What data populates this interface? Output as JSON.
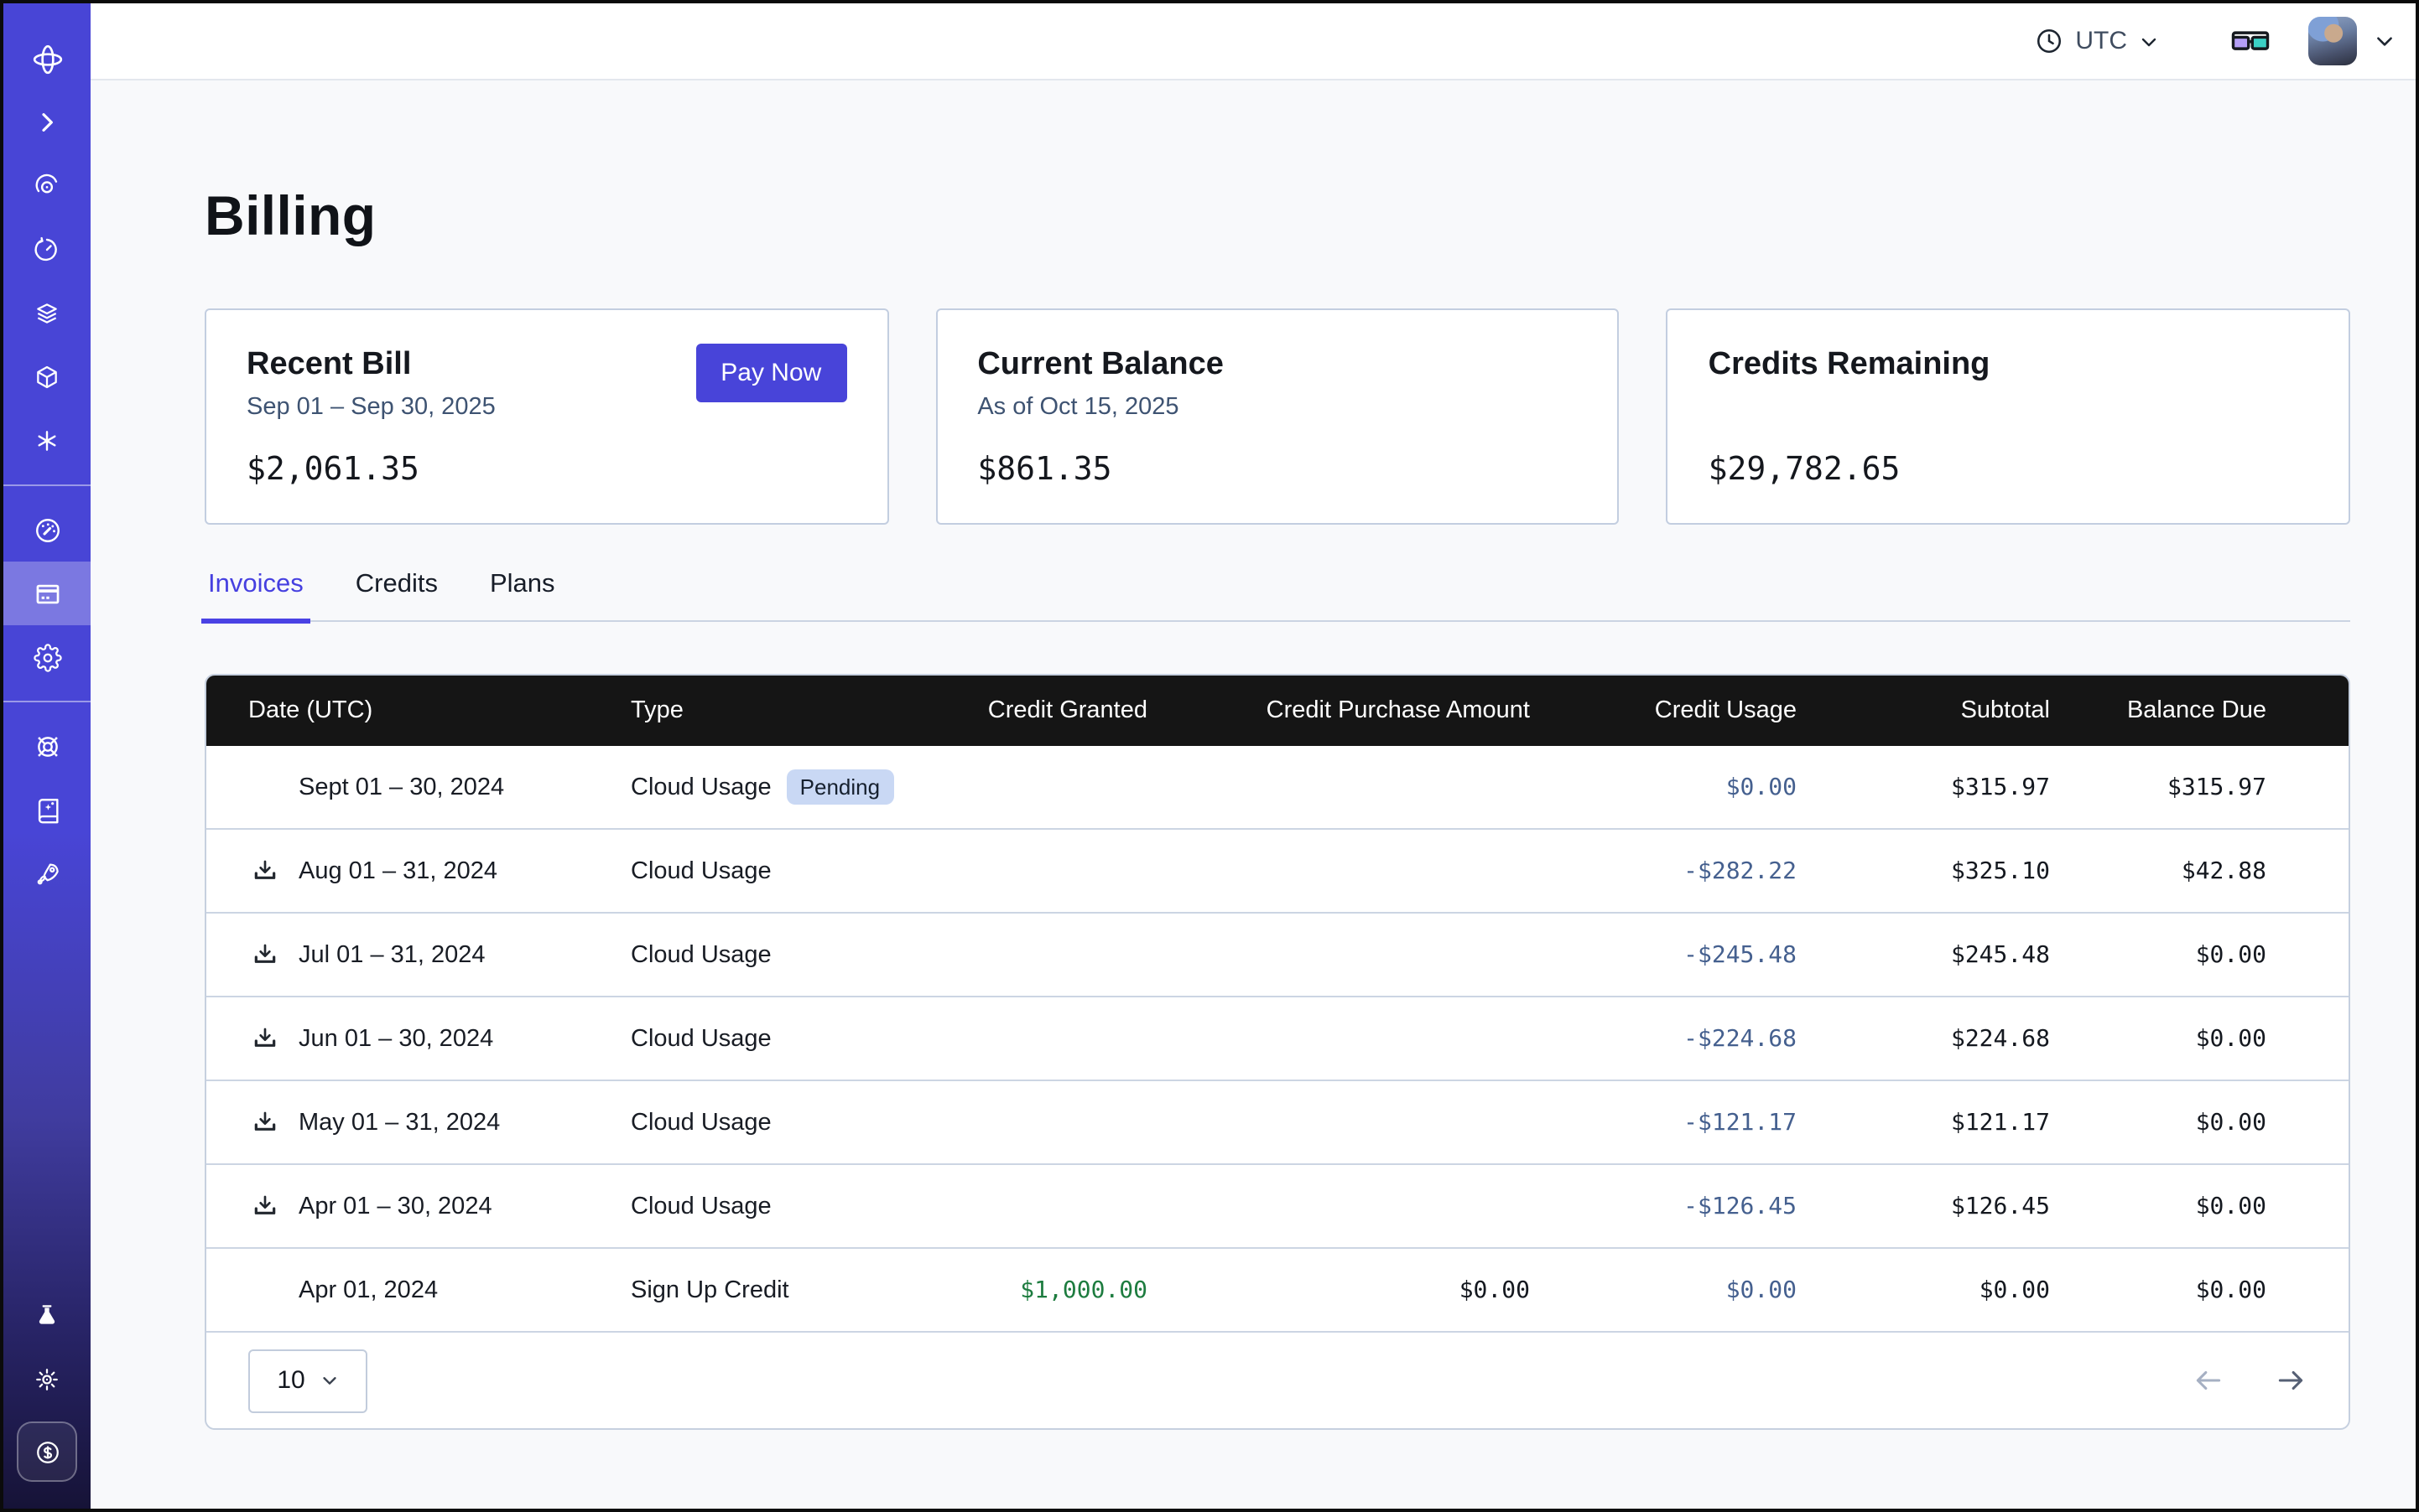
{
  "topbar": {
    "timezone": "UTC",
    "icons": [
      "clock-icon",
      "chevron-down-icon",
      "glasses-icon",
      "avatar",
      "chevron-down-icon"
    ]
  },
  "sidebar": {
    "active_item": "billing",
    "groups": [
      [
        "orbit-logo",
        "chevron-right",
        "hypnosis",
        "timer",
        "layers",
        "cube",
        "asterisk"
      ],
      [
        "gauge-dashboard",
        "credit-card-billing",
        "settings-gear"
      ],
      [
        "helm-support",
        "docs-book",
        "rocket"
      ],
      [
        "lab-flask",
        "brightness-sun",
        "dollar-seal"
      ]
    ]
  },
  "page": {
    "title": "Billing"
  },
  "cards": [
    {
      "title": "Recent Bill",
      "subtitle": "Sep 01 – Sep 30, 2025",
      "amount": "$2,061.35",
      "action_label": "Pay Now"
    },
    {
      "title": "Current Balance",
      "subtitle": "As of Oct 15, 2025",
      "amount": "$861.35"
    },
    {
      "title": "Credits Remaining",
      "subtitle": "",
      "amount": "$29,782.65"
    }
  ],
  "tabs": [
    {
      "label": "Invoices",
      "active": true
    },
    {
      "label": "Credits",
      "active": false
    },
    {
      "label": "Plans",
      "active": false
    }
  ],
  "table": {
    "columns": [
      {
        "label": "Date (UTC)",
        "align": "left"
      },
      {
        "label": "Type",
        "align": "left"
      },
      {
        "label": "Credit Granted",
        "align": "right"
      },
      {
        "label": "Credit Purchase Amount",
        "align": "right"
      },
      {
        "label": "Credit Usage",
        "align": "right"
      },
      {
        "label": "Subtotal",
        "align": "right"
      },
      {
        "label": "Balance Due",
        "align": "right"
      }
    ],
    "rows": [
      {
        "date": "Sept 01 – 30, 2024",
        "download": false,
        "type": "Cloud Usage",
        "badge": "Pending",
        "credit_granted": "",
        "credit_purchase": "",
        "credit_usage": "$0.00",
        "subtotal": "$315.97",
        "balance_due": "$315.97"
      },
      {
        "date": "Aug 01 – 31, 2024",
        "download": true,
        "type": "Cloud Usage",
        "credit_granted": "",
        "credit_purchase": "",
        "credit_usage": "-$282.22",
        "subtotal": "$325.10",
        "balance_due": "$42.88"
      },
      {
        "date": "Jul 01 – 31, 2024",
        "download": true,
        "type": "Cloud Usage",
        "credit_granted": "",
        "credit_purchase": "",
        "credit_usage": "-$245.48",
        "subtotal": "$245.48",
        "balance_due": "$0.00"
      },
      {
        "date": "Jun 01 – 30, 2024",
        "download": true,
        "type": "Cloud Usage",
        "credit_granted": "",
        "credit_purchase": "",
        "credit_usage": "-$224.68",
        "subtotal": "$224.68",
        "balance_due": "$0.00"
      },
      {
        "date": "May 01 – 31, 2024",
        "download": true,
        "type": "Cloud Usage",
        "credit_granted": "",
        "credit_purchase": "",
        "credit_usage": "-$121.17",
        "subtotal": "$121.17",
        "balance_due": "$0.00"
      },
      {
        "date": "Apr 01 – 30, 2024",
        "download": true,
        "type": "Cloud Usage",
        "credit_granted": "",
        "credit_purchase": "",
        "credit_usage": "-$126.45",
        "subtotal": "$126.45",
        "balance_due": "$0.00"
      },
      {
        "date": "Apr 01, 2024",
        "download": false,
        "type": "Sign Up Credit",
        "credit_granted": "$1,000.00",
        "credit_purchase": "$0.00",
        "credit_usage": "$0.00",
        "subtotal": "$0.00",
        "balance_due": "$0.00"
      }
    ],
    "pagination": {
      "page_size": "10"
    }
  },
  "colors": {
    "accent": "#4844d9",
    "sidebar": "#4845d6",
    "table_header_bg": "#151515",
    "pending_badge_bg": "#c9d8f4",
    "credit_usage_blue": "#45608f",
    "credit_granted_green": "#1d7c3f",
    "page_bg": "#f8f9fb"
  }
}
